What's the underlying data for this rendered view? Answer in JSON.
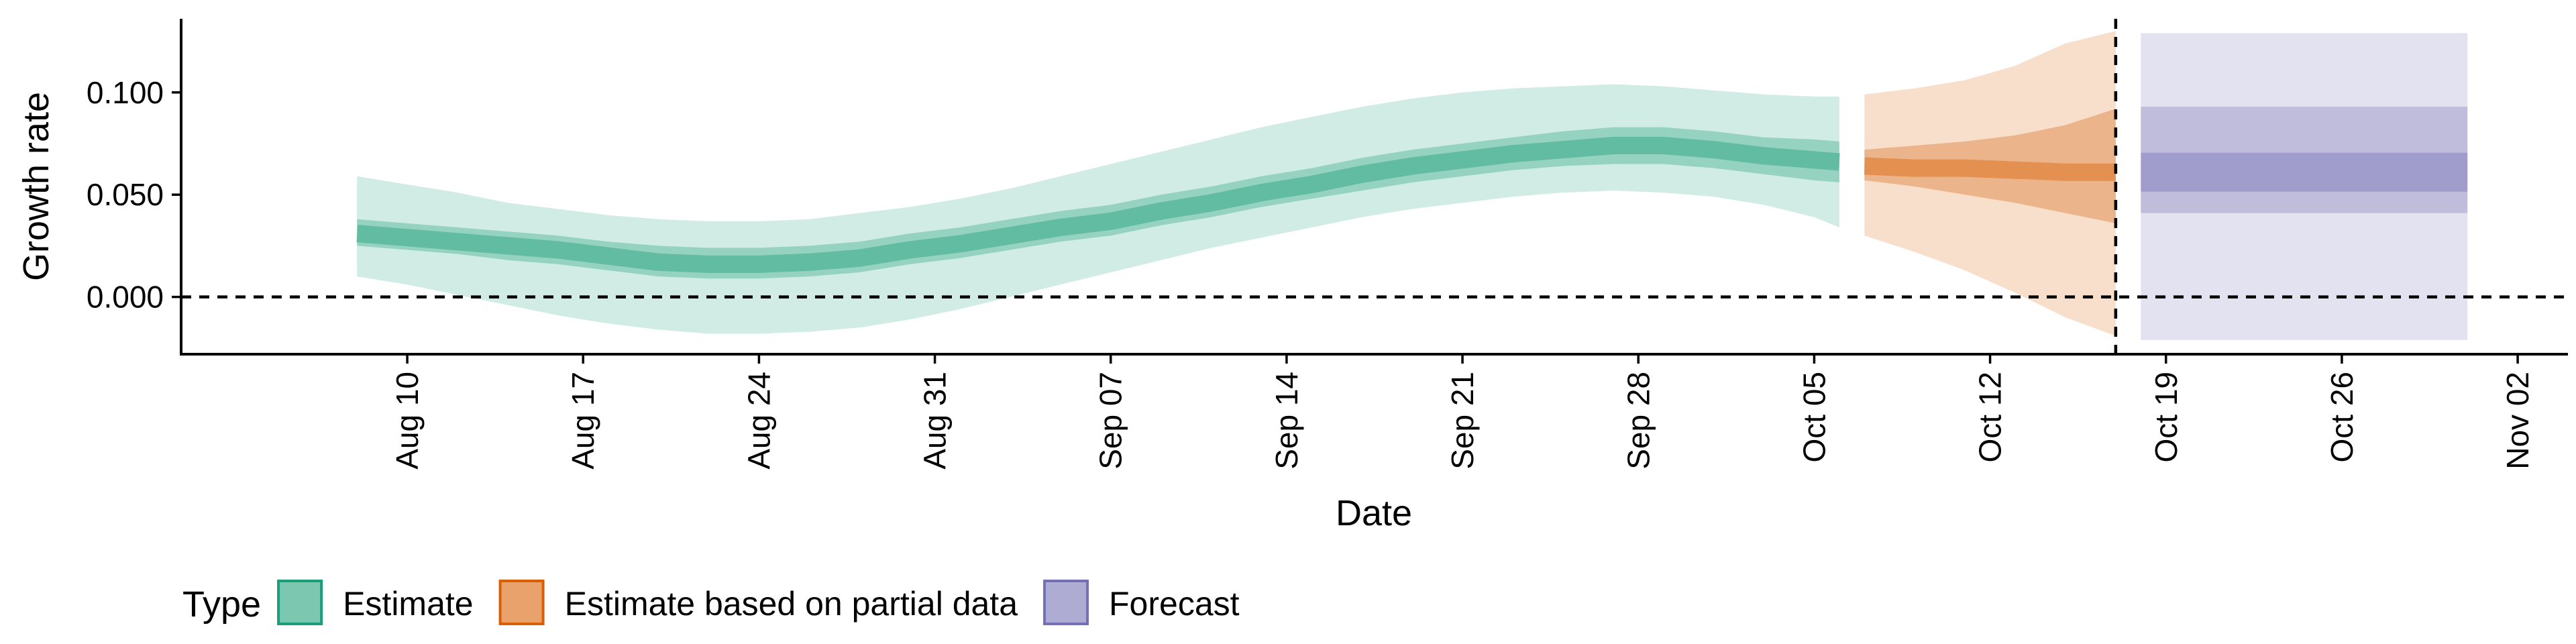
{
  "chart_data": {
    "type": "area",
    "xlabel": "Date",
    "ylabel": "Growth rate",
    "legend_title": "Type",
    "legend_position": "bottom-left",
    "grid": false,
    "xlim": [
      "2021-08-01",
      "2021-11-04"
    ],
    "ylim": [
      -0.028,
      0.136
    ],
    "x_ticks": [
      {
        "date": "2021-08-10",
        "label": "Aug 10"
      },
      {
        "date": "2021-08-17",
        "label": "Aug 17"
      },
      {
        "date": "2021-08-24",
        "label": "Aug 24"
      },
      {
        "date": "2021-08-31",
        "label": "Aug 31"
      },
      {
        "date": "2021-09-07",
        "label": "Sep 07"
      },
      {
        "date": "2021-09-14",
        "label": "Sep 14"
      },
      {
        "date": "2021-09-21",
        "label": "Sep 21"
      },
      {
        "date": "2021-09-28",
        "label": "Sep 28"
      },
      {
        "date": "2021-10-05",
        "label": "Oct 05"
      },
      {
        "date": "2021-10-12",
        "label": "Oct 12"
      },
      {
        "date": "2021-10-19",
        "label": "Oct 19"
      },
      {
        "date": "2021-10-26",
        "label": "Oct 26"
      },
      {
        "date": "2021-11-02",
        "label": "Nov 02"
      }
    ],
    "y_ticks": [
      {
        "value": 0.0,
        "label": "0.000"
      },
      {
        "value": 0.05,
        "label": "0.050"
      },
      {
        "value": 0.1,
        "label": "0.100"
      }
    ],
    "reference_lines": {
      "horizontal": 0.0,
      "vertical_date": "2021-10-17"
    },
    "series": [
      {
        "name": "Estimate",
        "color": "#1b9e77",
        "median": [
          [
            "2021-08-08",
            0.031
          ],
          [
            "2021-08-10",
            0.029
          ],
          [
            "2021-08-12",
            0.027
          ],
          [
            "2021-08-14",
            0.025
          ],
          [
            "2021-08-16",
            0.023
          ],
          [
            "2021-08-18",
            0.02
          ],
          [
            "2021-08-20",
            0.017
          ],
          [
            "2021-08-22",
            0.016
          ],
          [
            "2021-08-24",
            0.016
          ],
          [
            "2021-08-26",
            0.017
          ],
          [
            "2021-08-28",
            0.019
          ],
          [
            "2021-08-30",
            0.023
          ],
          [
            "2021-09-01",
            0.026
          ],
          [
            "2021-09-03",
            0.03
          ],
          [
            "2021-09-05",
            0.034
          ],
          [
            "2021-09-07",
            0.037
          ],
          [
            "2021-09-09",
            0.042
          ],
          [
            "2021-09-11",
            0.046
          ],
          [
            "2021-09-13",
            0.051
          ],
          [
            "2021-09-15",
            0.055
          ],
          [
            "2021-09-17",
            0.06
          ],
          [
            "2021-09-19",
            0.064
          ],
          [
            "2021-09-21",
            0.067
          ],
          [
            "2021-09-23",
            0.07
          ],
          [
            "2021-09-25",
            0.072
          ],
          [
            "2021-09-27",
            0.074
          ],
          [
            "2021-09-29",
            0.074
          ],
          [
            "2021-10-01",
            0.072
          ],
          [
            "2021-10-03",
            0.069
          ],
          [
            "2021-10-05",
            0.067
          ],
          [
            "2021-10-06",
            0.066
          ]
        ],
        "inner": [
          [
            "2021-08-08",
            0.025,
            0.038
          ],
          [
            "2021-08-10",
            0.023,
            0.036
          ],
          [
            "2021-08-12",
            0.021,
            0.034
          ],
          [
            "2021-08-14",
            0.018,
            0.032
          ],
          [
            "2021-08-16",
            0.016,
            0.03
          ],
          [
            "2021-08-18",
            0.013,
            0.027
          ],
          [
            "2021-08-20",
            0.01,
            0.025
          ],
          [
            "2021-08-22",
            0.009,
            0.024
          ],
          [
            "2021-08-24",
            0.009,
            0.024
          ],
          [
            "2021-08-26",
            0.01,
            0.025
          ],
          [
            "2021-08-28",
            0.012,
            0.027
          ],
          [
            "2021-08-30",
            0.016,
            0.031
          ],
          [
            "2021-09-01",
            0.019,
            0.034
          ],
          [
            "2021-09-03",
            0.023,
            0.038
          ],
          [
            "2021-09-05",
            0.027,
            0.042
          ],
          [
            "2021-09-07",
            0.03,
            0.045
          ],
          [
            "2021-09-09",
            0.035,
            0.05
          ],
          [
            "2021-09-11",
            0.039,
            0.054
          ],
          [
            "2021-09-13",
            0.044,
            0.059
          ],
          [
            "2021-09-15",
            0.048,
            0.063
          ],
          [
            "2021-09-17",
            0.052,
            0.068
          ],
          [
            "2021-09-19",
            0.056,
            0.072
          ],
          [
            "2021-09-21",
            0.059,
            0.075
          ],
          [
            "2021-09-23",
            0.062,
            0.078
          ],
          [
            "2021-09-25",
            0.064,
            0.081
          ],
          [
            "2021-09-27",
            0.065,
            0.083
          ],
          [
            "2021-09-29",
            0.065,
            0.083
          ],
          [
            "2021-10-01",
            0.063,
            0.081
          ],
          [
            "2021-10-03",
            0.06,
            0.078
          ],
          [
            "2021-10-05",
            0.057,
            0.077
          ],
          [
            "2021-10-06",
            0.056,
            0.076
          ]
        ],
        "outer": [
          [
            "2021-08-08",
            0.01,
            0.059
          ],
          [
            "2021-08-10",
            0.006,
            0.055
          ],
          [
            "2021-08-12",
            0.001,
            0.051
          ],
          [
            "2021-08-14",
            -0.004,
            0.046
          ],
          [
            "2021-08-16",
            -0.009,
            0.043
          ],
          [
            "2021-08-18",
            -0.013,
            0.04
          ],
          [
            "2021-08-20",
            -0.016,
            0.038
          ],
          [
            "2021-08-22",
            -0.018,
            0.037
          ],
          [
            "2021-08-24",
            -0.018,
            0.037
          ],
          [
            "2021-08-26",
            -0.017,
            0.038
          ],
          [
            "2021-08-28",
            -0.015,
            0.041
          ],
          [
            "2021-08-30",
            -0.011,
            0.044
          ],
          [
            "2021-09-01",
            -0.006,
            0.048
          ],
          [
            "2021-09-03",
            0.0,
            0.053
          ],
          [
            "2021-09-05",
            0.006,
            0.059
          ],
          [
            "2021-09-07",
            0.012,
            0.065
          ],
          [
            "2021-09-09",
            0.018,
            0.071
          ],
          [
            "2021-09-11",
            0.024,
            0.077
          ],
          [
            "2021-09-13",
            0.029,
            0.083
          ],
          [
            "2021-09-15",
            0.034,
            0.088
          ],
          [
            "2021-09-17",
            0.039,
            0.093
          ],
          [
            "2021-09-19",
            0.043,
            0.097
          ],
          [
            "2021-09-21",
            0.046,
            0.1
          ],
          [
            "2021-09-23",
            0.049,
            0.102
          ],
          [
            "2021-09-25",
            0.051,
            0.103
          ],
          [
            "2021-09-27",
            0.052,
            0.104
          ],
          [
            "2021-09-29",
            0.051,
            0.103
          ],
          [
            "2021-10-01",
            0.049,
            0.101
          ],
          [
            "2021-10-03",
            0.045,
            0.099
          ],
          [
            "2021-10-05",
            0.039,
            0.098
          ],
          [
            "2021-10-06",
            0.034,
            0.098
          ]
        ]
      },
      {
        "name": "Estimate based on partial data",
        "color": "#d95f02",
        "median": [
          [
            "2021-10-07",
            0.064
          ],
          [
            "2021-10-09",
            0.063
          ],
          [
            "2021-10-11",
            0.063
          ],
          [
            "2021-10-13",
            0.062
          ],
          [
            "2021-10-15",
            0.061
          ],
          [
            "2021-10-17",
            0.061
          ]
        ],
        "inner": [
          [
            "2021-10-07",
            0.057,
            0.072
          ],
          [
            "2021-10-09",
            0.054,
            0.074
          ],
          [
            "2021-10-11",
            0.05,
            0.076
          ],
          [
            "2021-10-13",
            0.046,
            0.079
          ],
          [
            "2021-10-15",
            0.041,
            0.084
          ],
          [
            "2021-10-17",
            0.036,
            0.092
          ]
        ],
        "outer": [
          [
            "2021-10-07",
            0.03,
            0.099
          ],
          [
            "2021-10-09",
            0.022,
            0.102
          ],
          [
            "2021-10-11",
            0.013,
            0.106
          ],
          [
            "2021-10-13",
            0.002,
            0.113
          ],
          [
            "2021-10-15",
            -0.01,
            0.124
          ],
          [
            "2021-10-17",
            -0.019,
            0.13
          ]
        ]
      },
      {
        "name": "Forecast",
        "color": "#7570b3",
        "median": [
          [
            "2021-10-18",
            0.061
          ],
          [
            "2021-10-31",
            0.061
          ]
        ],
        "inner": [
          [
            "2021-10-18",
            0.041,
            0.093
          ],
          [
            "2021-10-31",
            0.041,
            0.093
          ]
        ],
        "outer": [
          [
            "2021-10-18",
            -0.021,
            0.129
          ],
          [
            "2021-10-31",
            -0.021,
            0.129
          ]
        ]
      }
    ]
  }
}
